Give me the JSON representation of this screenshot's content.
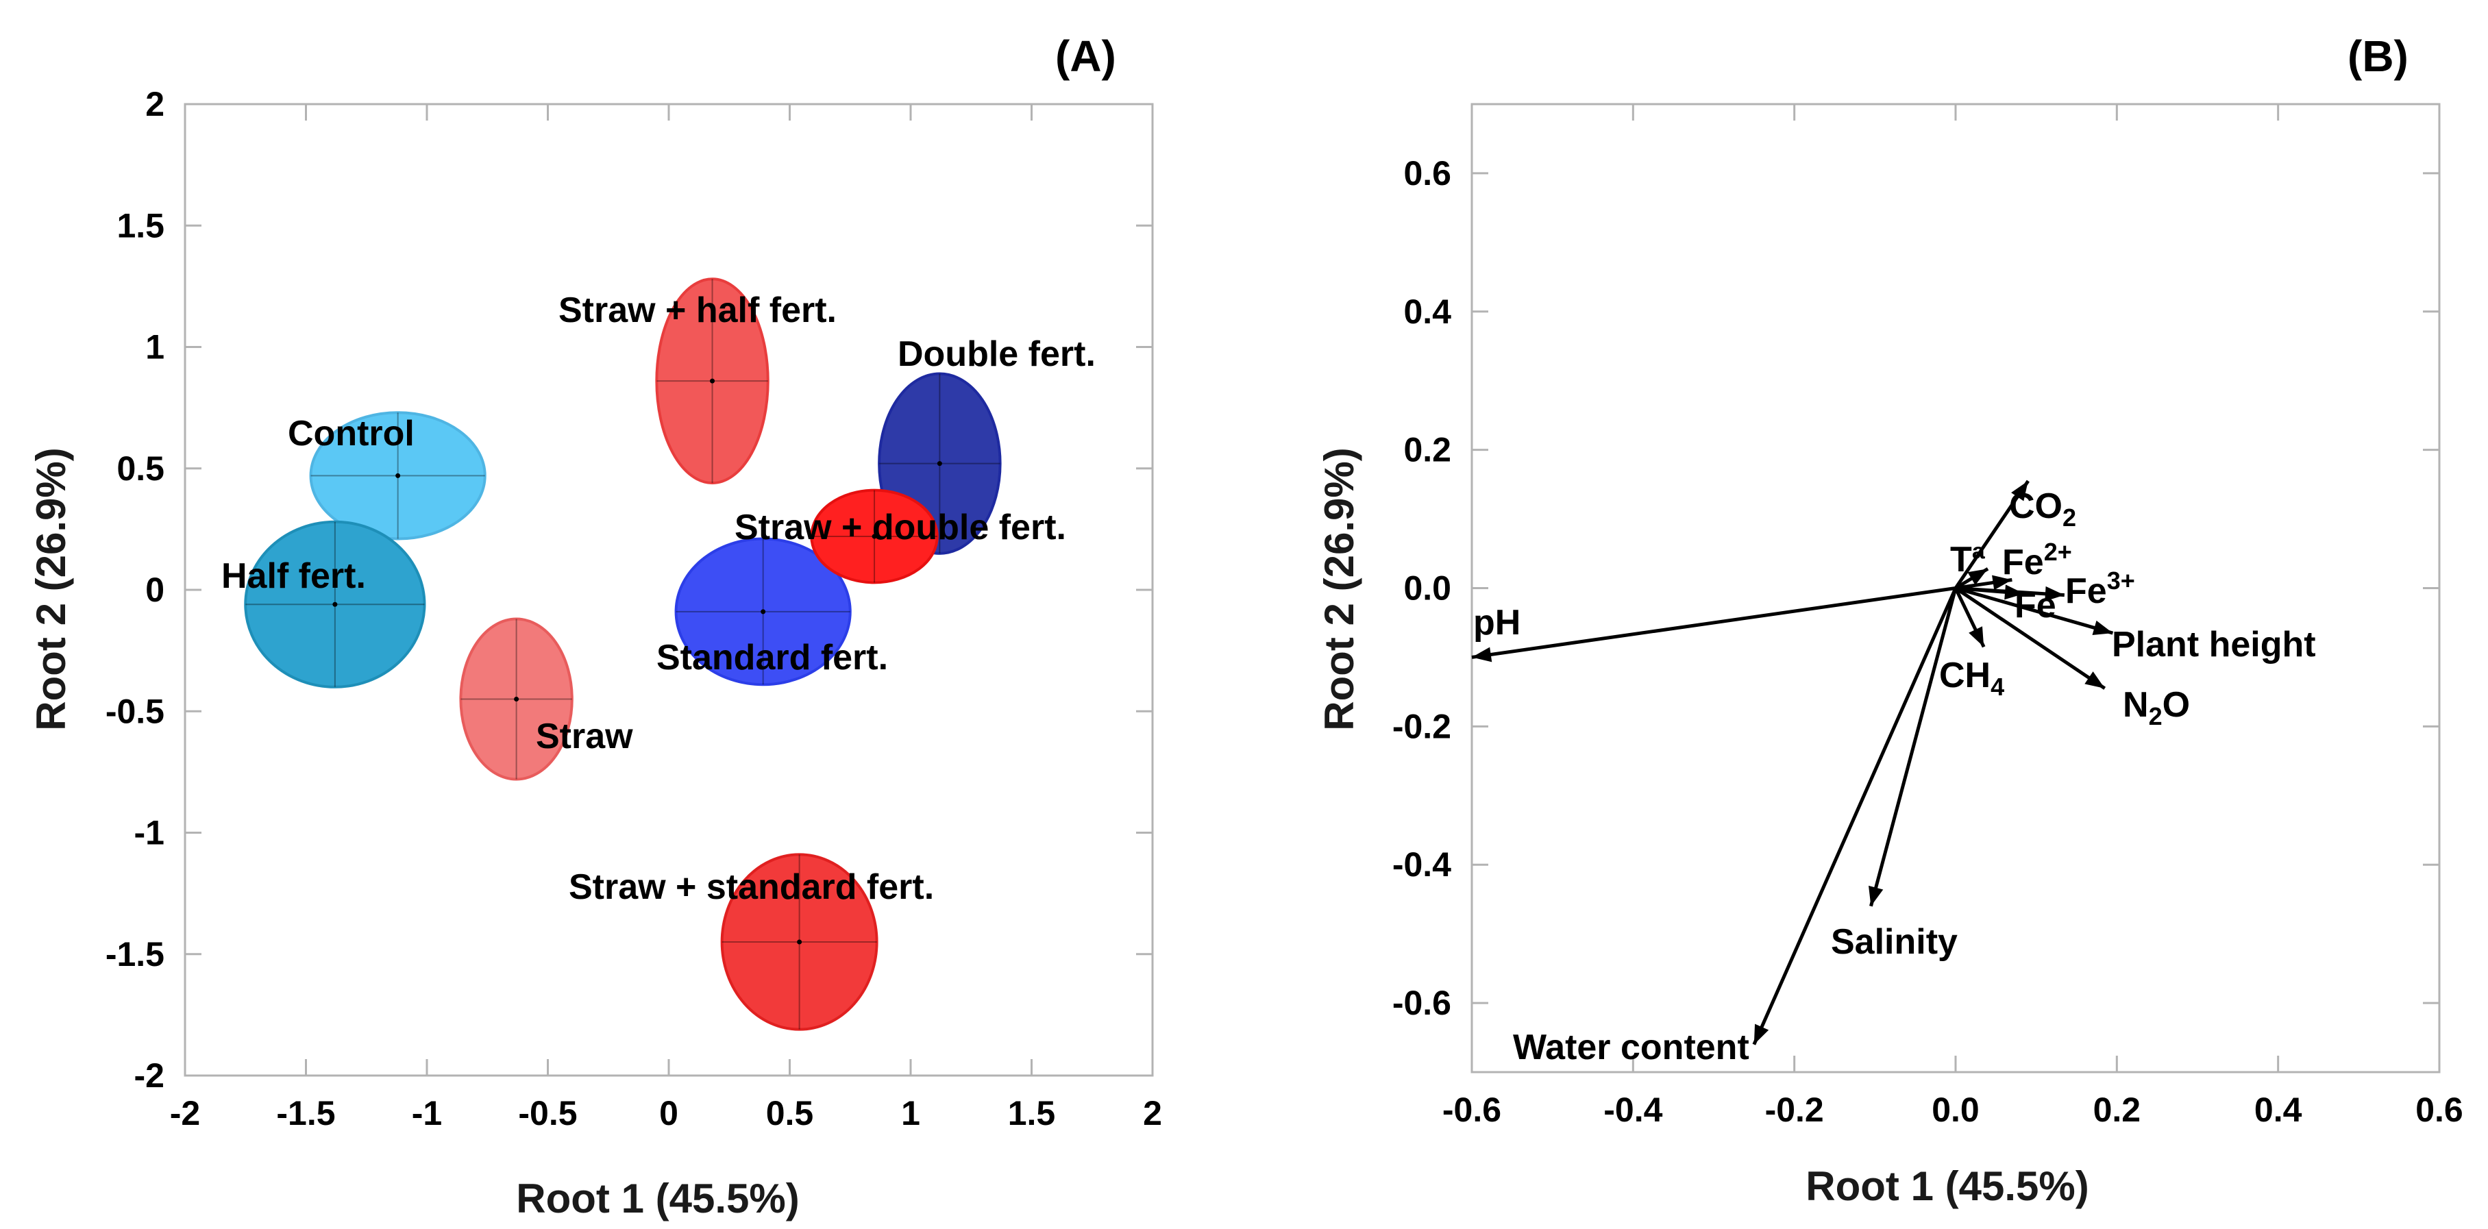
{
  "chart_data": [
    {
      "type": "scatter",
      "panel": "(A)",
      "title": "",
      "xlabel": "Root 1 (45.5%)",
      "ylabel": "Root 2 (26.9%)",
      "xlim": [
        -2,
        2
      ],
      "ylim": [
        -2,
        2
      ],
      "xticks": [
        -2,
        -1.5,
        -1,
        -0.5,
        0,
        0.5,
        1,
        1.5,
        2
      ],
      "yticks": [
        -2,
        -1.5,
        -1,
        -0.5,
        0,
        0.5,
        1,
        1.5,
        2
      ],
      "xtick_labels": [
        "-2",
        "-1.5",
        "-1",
        "-0.5",
        "0",
        "0.5",
        "1",
        "1.5",
        "2"
      ],
      "ytick_labels": [
        "-2",
        "-1.5",
        "-1",
        "-0.5",
        "0",
        "0.5",
        "1",
        "1.5",
        "2"
      ],
      "groups": [
        {
          "name": "Control",
          "x": -1.12,
          "y": 0.47,
          "rx": 0.36,
          "ry": 0.26,
          "color": "#5bc8f5",
          "edge": "#4fb5e3"
        },
        {
          "name": "Half fert.",
          "x": -1.38,
          "y": -0.06,
          "rx": 0.37,
          "ry": 0.34,
          "color": "#2ea3cf",
          "edge": "#1e8fb8"
        },
        {
          "name": "Straw",
          "x": -0.63,
          "y": -0.45,
          "rx": 0.23,
          "ry": 0.33,
          "color": "#f27a7a",
          "edge": "#e85c5c"
        },
        {
          "name": "Straw + half fert.",
          "x": 0.18,
          "y": 0.86,
          "rx": 0.23,
          "ry": 0.42,
          "color": "#f25858",
          "edge": "#e83d3d"
        },
        {
          "name": "Standard fert.",
          "x": 0.39,
          "y": -0.09,
          "rx": 0.36,
          "ry": 0.3,
          "color": "#3d4ef5",
          "edge": "#2c3ee8"
        },
        {
          "name": "Double fert.",
          "x": 1.12,
          "y": 0.52,
          "rx": 0.25,
          "ry": 0.37,
          "color": "#2e3aa8",
          "edge": "#1e2aa0"
        },
        {
          "name": "Straw + double fert.",
          "x": 0.85,
          "y": 0.22,
          "rx": 0.26,
          "ry": 0.19,
          "color": "#ff2020",
          "edge": "#e61010"
        },
        {
          "name": "Straw + standard fert.",
          "x": 0.54,
          "y": -1.45,
          "rx": 0.32,
          "ry": 0.36,
          "color": "#f23a3a",
          "edge": "#e02020"
        }
      ]
    },
    {
      "type": "biplot",
      "panel": "(B)",
      "title": "",
      "xlabel": "Root 1 (45.5%)",
      "ylabel": "Root 2 (26.9%)",
      "xlim": [
        -0.6,
        0.6
      ],
      "ylim": [
        -0.7,
        0.7
      ],
      "xticks": [
        -0.6,
        -0.4,
        -0.2,
        0.0,
        0.2,
        0.4,
        0.6
      ],
      "yticks": [
        -0.6,
        -0.4,
        -0.2,
        0.0,
        0.2,
        0.4,
        0.6
      ],
      "xtick_labels": [
        "-0.6",
        "-0.4",
        "-0.2",
        "0.0",
        "0.2",
        "0.4",
        "0.6"
      ],
      "ytick_labels": [
        "-0.6",
        "-0.4",
        "-0.2",
        "0.0",
        "0.2",
        "0.4",
        "0.6"
      ],
      "vectors": [
        {
          "name": "pH",
          "x": -0.6,
          "y": -0.1
        },
        {
          "name": "Water content",
          "x": -0.25,
          "y": -0.66
        },
        {
          "name": "Salinity",
          "x": -0.105,
          "y": -0.46
        },
        {
          "name": "CH4",
          "x": 0.035,
          "y": -0.085
        },
        {
          "name": "CO2",
          "x": 0.09,
          "y": 0.155
        },
        {
          "name": "Tª",
          "x": 0.04,
          "y": 0.028
        },
        {
          "name": "Fe2+",
          "x": 0.07,
          "y": 0.012
        },
        {
          "name": "Fe",
          "x": 0.085,
          "y": -0.008
        },
        {
          "name": "Fe3+",
          "x": 0.135,
          "y": -0.01
        },
        {
          "name": "Plant height",
          "x": 0.195,
          "y": -0.065
        },
        {
          "name": "N2O",
          "x": 0.185,
          "y": -0.145
        }
      ]
    }
  ],
  "labels": {
    "control": "Control",
    "half": "Half fert.",
    "straw": "Straw",
    "straw_half": "Straw + half fert.",
    "standard": "Standard fert.",
    "double": "Double fert.",
    "straw_double": "Straw + double fert.",
    "straw_standard": "Straw + standard fert.",
    "ph": "pH",
    "water": "Water content",
    "salinity": "Salinity",
    "ch4_base": "CH",
    "ch4_sub": "4",
    "co2_base": "CO",
    "co2_sub": "2",
    "ta": "Tª",
    "fe2_base": "Fe",
    "fe2_sup": "2+",
    "fe": "Fe",
    "fe3_base": "Fe",
    "fe3_sup": "3+",
    "plant": "Plant height",
    "n2o_n": "N",
    "n2o_sub": "2",
    "n2o_o": "O"
  }
}
